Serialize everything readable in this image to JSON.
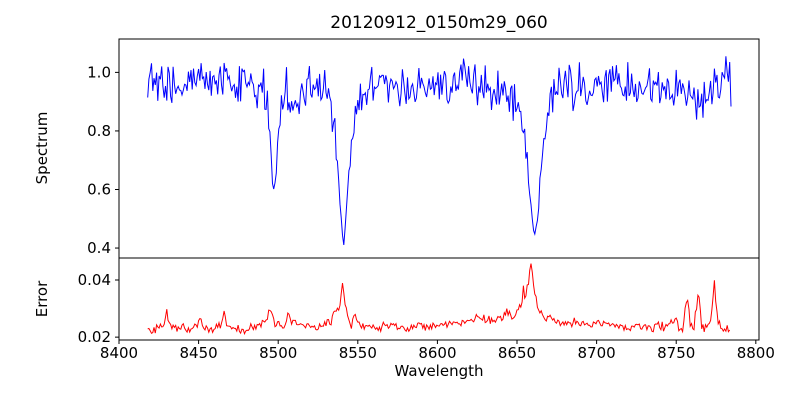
{
  "chart_data": {
    "type": "line",
    "title": "20120912_0150m29_060",
    "xlabel": "Wavelength",
    "xlim": [
      8400,
      8802
    ],
    "x_ticks": [
      8400,
      8450,
      8500,
      8550,
      8600,
      8650,
      8700,
      8750,
      8800
    ],
    "grid": false,
    "legend": "none",
    "panels": [
      {
        "ylabel": "Spectrum",
        "color": "#0000ff",
        "ylim": [
          0.366,
          1.114
        ],
        "yticks": [
          0.4,
          0.6,
          0.8,
          1.0
        ],
        "ytick_labels": [
          "0.4",
          "0.6",
          "0.8",
          "1.0"
        ],
        "x_data_range": [
          8418,
          8785
        ],
        "absorption_minima": [
          {
            "wavelength": 8497,
            "value": 0.59
          },
          {
            "wavelength": 8541,
            "value": 0.4
          },
          {
            "wavelength": 8661,
            "value": 0.44
          }
        ],
        "keypoints": [
          [
            8418,
            0.96
          ],
          [
            8426,
            0.97
          ],
          [
            8434,
            0.95
          ],
          [
            8442,
            0.96
          ],
          [
            8452,
            0.955
          ],
          [
            8460,
            0.97
          ],
          [
            8468,
            0.96
          ],
          [
            8476,
            0.965
          ],
          [
            8483,
            0.955
          ],
          [
            8487,
            0.93
          ],
          [
            8491,
            0.955
          ],
          [
            8494,
            0.86
          ],
          [
            8496,
            0.665
          ],
          [
            8497,
            0.59
          ],
          [
            8498,
            0.62
          ],
          [
            8500,
            0.8
          ],
          [
            8502,
            0.9
          ],
          [
            8504,
            0.955
          ],
          [
            8508,
            0.92
          ],
          [
            8512,
            0.865
          ],
          [
            8516,
            0.93
          ],
          [
            8521,
            0.955
          ],
          [
            8526,
            0.96
          ],
          [
            8530,
            0.935
          ],
          [
            8533,
            0.88
          ],
          [
            8536,
            0.78
          ],
          [
            8538,
            0.62
          ],
          [
            8540,
            0.47
          ],
          [
            8541,
            0.4
          ],
          [
            8542,
            0.47
          ],
          [
            8544,
            0.63
          ],
          [
            8546,
            0.76
          ],
          [
            8548,
            0.845
          ],
          [
            8551,
            0.9
          ],
          [
            8555,
            0.94
          ],
          [
            8560,
            0.955
          ],
          [
            8570,
            0.96
          ],
          [
            8580,
            0.955
          ],
          [
            8590,
            0.955
          ],
          [
            8600,
            0.96
          ],
          [
            8608,
            0.965
          ],
          [
            8614,
            0.985
          ],
          [
            8617,
            1.0
          ],
          [
            8620,
            0.965
          ],
          [
            8626,
            0.95
          ],
          [
            8631,
            0.96
          ],
          [
            8636,
            0.935
          ],
          [
            8641,
            0.95
          ],
          [
            8645,
            0.92
          ],
          [
            8649,
            0.89
          ],
          [
            8652,
            0.86
          ],
          [
            8655,
            0.78
          ],
          [
            8657,
            0.66
          ],
          [
            8659,
            0.52
          ],
          [
            8661,
            0.44
          ],
          [
            8663,
            0.5
          ],
          [
            8665,
            0.66
          ],
          [
            8667,
            0.79
          ],
          [
            8670,
            0.89
          ],
          [
            8674,
            0.935
          ],
          [
            8680,
            0.95
          ],
          [
            8690,
            0.955
          ],
          [
            8700,
            0.95
          ],
          [
            8710,
            0.955
          ],
          [
            8720,
            0.95
          ],
          [
            8728,
            0.945
          ],
          [
            8736,
            0.95
          ],
          [
            8744,
            0.94
          ],
          [
            8752,
            0.93
          ],
          [
            8758,
            0.915
          ],
          [
            8764,
            0.89
          ],
          [
            8768,
            0.91
          ],
          [
            8772,
            0.945
          ],
          [
            8777,
            0.97
          ],
          [
            8781,
            1.01
          ],
          [
            8785,
            0.96
          ]
        ]
      },
      {
        "ylabel": "Error",
        "color": "#ff0000",
        "ylim": [
          0.019,
          0.0477
        ],
        "yticks": [
          0.02,
          0.04
        ],
        "ytick_labels": [
          "0.02",
          "0.04"
        ],
        "x_data_range": [
          8418,
          8784
        ],
        "peaks": [
          {
            "wavelength": 8430,
            "value": 0.029
          },
          {
            "wavelength": 8451,
            "value": 0.026
          },
          {
            "wavelength": 8466,
            "value": 0.029
          },
          {
            "wavelength": 8496,
            "value": 0.029
          },
          {
            "wavelength": 8541,
            "value": 0.038
          },
          {
            "wavelength": 8659,
            "value": 0.046
          },
          {
            "wavelength": 8757,
            "value": 0.034
          },
          {
            "wavelength": 8764,
            "value": 0.037
          },
          {
            "wavelength": 8774,
            "value": 0.04
          }
        ],
        "keypoints": [
          [
            8418,
            0.0225
          ],
          [
            8424,
            0.023
          ],
          [
            8428,
            0.0235
          ],
          [
            8430,
            0.029
          ],
          [
            8432,
            0.024
          ],
          [
            8436,
            0.023
          ],
          [
            8442,
            0.0228
          ],
          [
            8447,
            0.0235
          ],
          [
            8451,
            0.0262
          ],
          [
            8454,
            0.0232
          ],
          [
            8459,
            0.0228
          ],
          [
            8464,
            0.0235
          ],
          [
            8466,
            0.0288
          ],
          [
            8468,
            0.0238
          ],
          [
            8473,
            0.023
          ],
          [
            8480,
            0.0228
          ],
          [
            8486,
            0.0232
          ],
          [
            8490,
            0.0248
          ],
          [
            8493,
            0.027
          ],
          [
            8496,
            0.0292
          ],
          [
            8498,
            0.0245
          ],
          [
            8501,
            0.0242
          ],
          [
            8504,
            0.0238
          ],
          [
            8506,
            0.028
          ],
          [
            8508,
            0.0248
          ],
          [
            8511,
            0.026
          ],
          [
            8514,
            0.0242
          ],
          [
            8518,
            0.0235
          ],
          [
            8524,
            0.0232
          ],
          [
            8529,
            0.0238
          ],
          [
            8533,
            0.026
          ],
          [
            8536,
            0.0285
          ],
          [
            8539,
            0.031
          ],
          [
            8540,
            0.0375
          ],
          [
            8541,
            0.0382
          ],
          [
            8542,
            0.0315
          ],
          [
            8544,
            0.0262
          ],
          [
            8546,
            0.0248
          ],
          [
            8548,
            0.0285
          ],
          [
            8550,
            0.0245
          ],
          [
            8554,
            0.0238
          ],
          [
            8560,
            0.0235
          ],
          [
            8568,
            0.0235
          ],
          [
            8576,
            0.0238
          ],
          [
            8584,
            0.0238
          ],
          [
            8592,
            0.024
          ],
          [
            8600,
            0.0245
          ],
          [
            8608,
            0.025
          ],
          [
            8615,
            0.0255
          ],
          [
            8620,
            0.026
          ],
          [
            8625,
            0.027
          ],
          [
            8629,
            0.0262
          ],
          [
            8634,
            0.026
          ],
          [
            8638,
            0.0265
          ],
          [
            8642,
            0.0275
          ],
          [
            8645,
            0.0288
          ],
          [
            8648,
            0.0262
          ],
          [
            8651,
            0.0298
          ],
          [
            8653,
            0.032
          ],
          [
            8654,
            0.0368
          ],
          [
            8655,
            0.0332
          ],
          [
            8657,
            0.038
          ],
          [
            8659,
            0.046
          ],
          [
            8660,
            0.042
          ],
          [
            8661,
            0.0355
          ],
          [
            8663,
            0.0302
          ],
          [
            8665,
            0.0285
          ],
          [
            8668,
            0.0268
          ],
          [
            8672,
            0.026
          ],
          [
            8676,
            0.0258
          ],
          [
            8680,
            0.0252
          ],
          [
            8688,
            0.0248
          ],
          [
            8696,
            0.0246
          ],
          [
            8704,
            0.0242
          ],
          [
            8712,
            0.024
          ],
          [
            8720,
            0.024
          ],
          [
            8728,
            0.0238
          ],
          [
            8736,
            0.0235
          ],
          [
            8742,
            0.0238
          ],
          [
            8747,
            0.0252
          ],
          [
            8750,
            0.026
          ],
          [
            8752,
            0.0232
          ],
          [
            8754,
            0.0228
          ],
          [
            8757,
            0.034
          ],
          [
            8759,
            0.0235
          ],
          [
            8761,
            0.0228
          ],
          [
            8764,
            0.0365
          ],
          [
            8766,
            0.024
          ],
          [
            8768,
            0.0228
          ],
          [
            8770,
            0.0242
          ],
          [
            8772,
            0.0268
          ],
          [
            8774,
            0.0398
          ],
          [
            8776,
            0.026
          ],
          [
            8778,
            0.0235
          ],
          [
            8781,
            0.0228
          ],
          [
            8784,
            0.023
          ]
        ]
      }
    ]
  }
}
